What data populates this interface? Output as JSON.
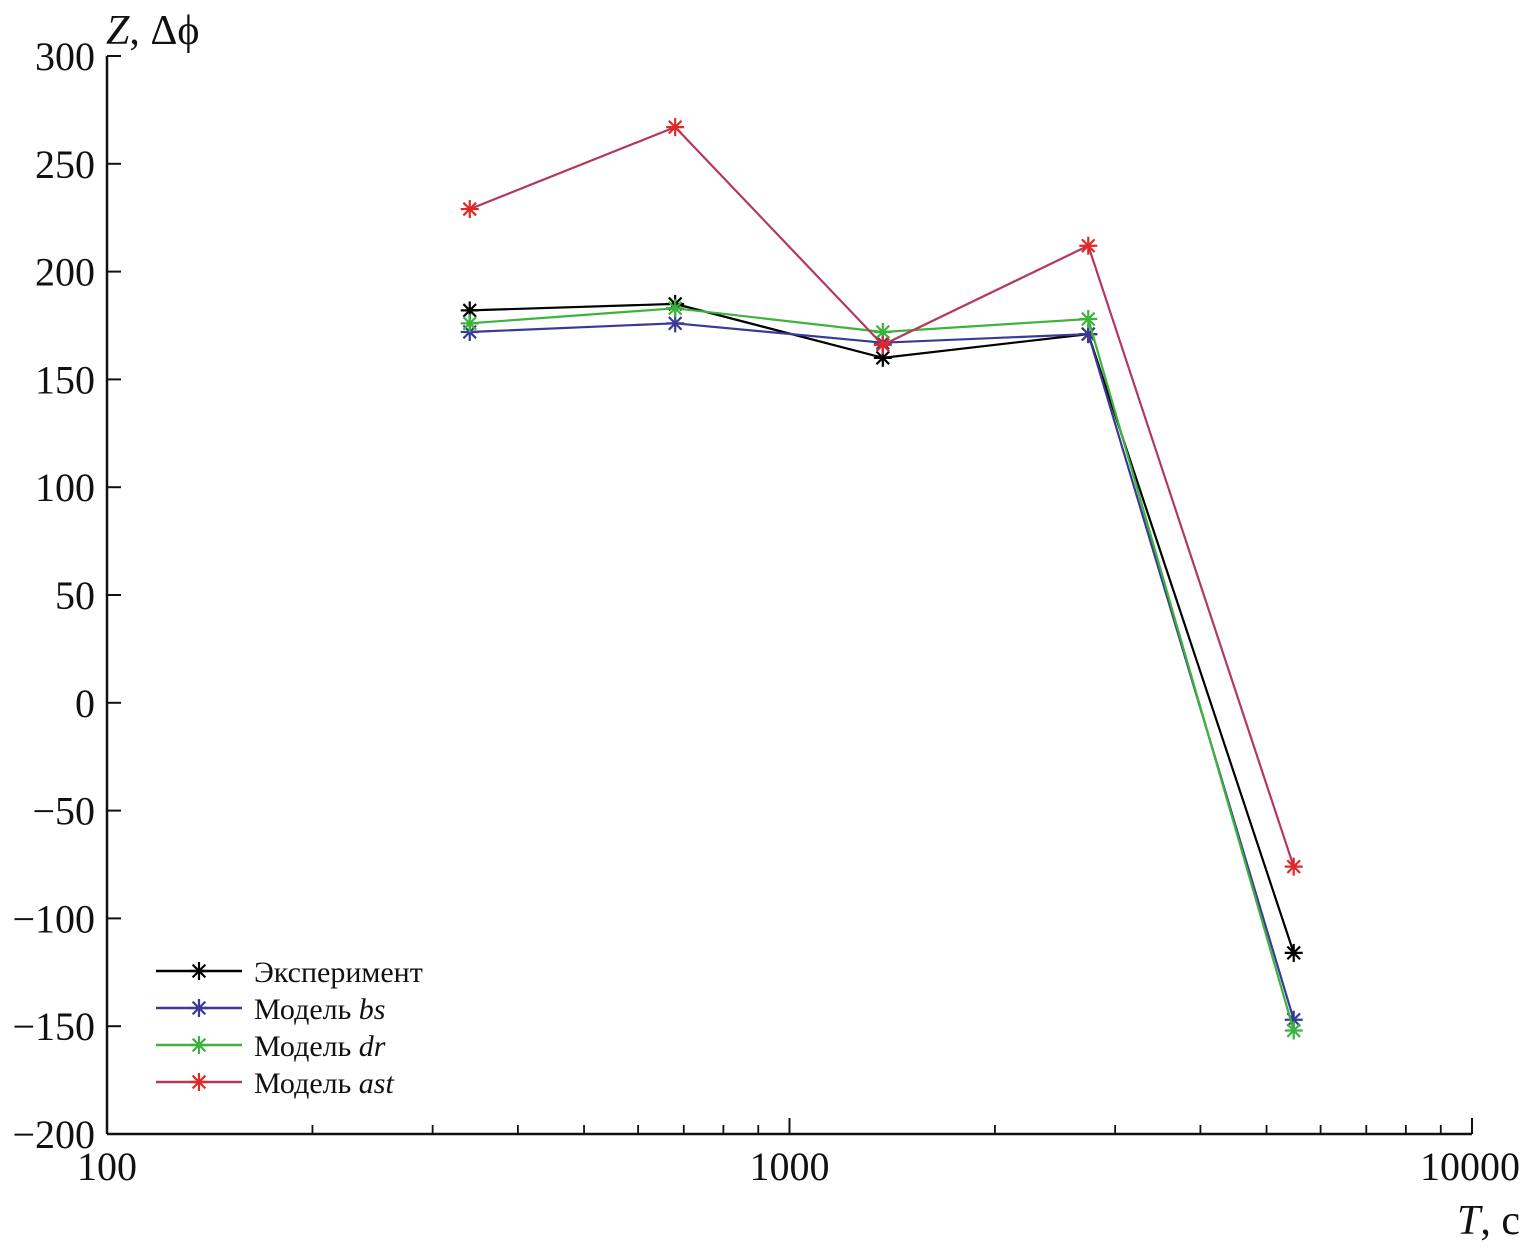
{
  "chart_data": {
    "type": "line",
    "x_scale": "log",
    "xlim": [
      100,
      10000
    ],
    "ylim": [
      -200,
      300
    ],
    "x_major_ticks": [
      100,
      1000,
      10000
    ],
    "x_minor_ticks": [
      200,
      300,
      400,
      500,
      600,
      700,
      800,
      900,
      2000,
      3000,
      4000,
      5000,
      6000,
      7000,
      8000,
      9000
    ],
    "y_ticks": [
      300,
      250,
      200,
      150,
      100,
      50,
      0,
      -50,
      -100,
      -150,
      -200
    ],
    "y_tick_labels": [
      "300",
      "250",
      "200",
      "150",
      "100",
      "50",
      "0",
      "−50",
      "−100",
      "−150",
      "−200"
    ],
    "x_tick_labels": [
      "100",
      "1000",
      "10000"
    ],
    "ylabel_var": "Z",
    "ylabel_rest": ", Δϕ",
    "xlabel_var": "T",
    "xlabel_rest": ", с",
    "legend_position": "bottom-left",
    "x": [
      340,
      680,
      1370,
      2740,
      5480
    ],
    "series": [
      {
        "name_plain": "Эксперимент",
        "name_italic": "",
        "color": "#000000",
        "values": [
          182,
          185,
          160,
          171,
          -116
        ]
      },
      {
        "name_plain": "Модель ",
        "name_italic": "bs",
        "color": "#3a3a96",
        "values": [
          172,
          176,
          167,
          171,
          -147
        ]
      },
      {
        "name_plain": "Модель ",
        "name_italic": "dr",
        "color": "#3cb43c",
        "values": [
          176,
          183,
          172,
          178,
          -152
        ]
      },
      {
        "name_plain": "Модель ",
        "name_italic": "ast",
        "color": "#b23a5a",
        "marker_color": "#e02828",
        "values": [
          229,
          267,
          166,
          212,
          -76
        ]
      }
    ]
  }
}
